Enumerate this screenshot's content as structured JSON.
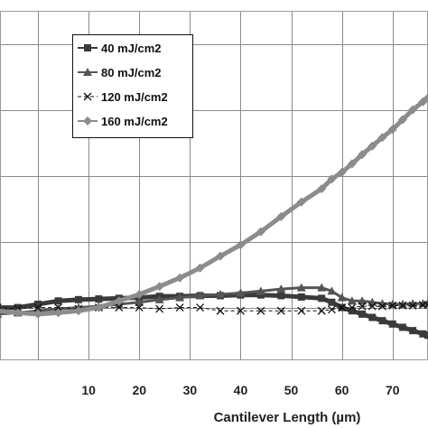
{
  "chart_data": {
    "type": "line",
    "title": "",
    "xlabel": "Cantilever Length (µm)",
    "ylabel": "",
    "xlim": [
      -7.5,
      77
    ],
    "x_ticks": [
      10,
      20,
      30,
      40,
      50,
      60,
      70
    ],
    "ylim": [
      -0.8,
      4.5
    ],
    "grid": true,
    "legend": "top-left",
    "colors": {
      "s40": "#3a3a3a",
      "s80": "#555555",
      "s120": "#111111",
      "s160": "#8c8c8c",
      "grid": "#8a8a8a",
      "frame": "#9a9a9a"
    },
    "series": [
      {
        "name": "40 mJ/cm2",
        "marker": "square",
        "x": [
          -8,
          -4,
          0,
          4,
          8,
          12,
          16,
          20,
          24,
          28,
          32,
          36,
          40,
          44,
          48,
          52,
          56,
          58,
          60,
          62,
          64,
          66,
          68,
          70,
          72,
          74,
          76,
          77
        ],
        "values": [
          0,
          0,
          0.05,
          0.1,
          0.12,
          0.13,
          0.14,
          0.15,
          0.17,
          0.17,
          0.18,
          0.18,
          0.19,
          0.19,
          0.18,
          0.16,
          0.14,
          0.08,
          0.0,
          -0.05,
          -0.1,
          -0.15,
          -0.2,
          -0.25,
          -0.3,
          -0.35,
          -0.4,
          -0.42
        ]
      },
      {
        "name": "80 mJ/cm2",
        "marker": "triangle",
        "x": [
          -8,
          -4,
          0,
          4,
          8,
          12,
          16,
          20,
          24,
          28,
          32,
          36,
          40,
          44,
          48,
          52,
          56,
          58,
          60,
          62,
          64,
          66,
          68,
          70,
          72,
          74,
          76,
          77
        ],
        "values": [
          -0.1,
          -0.08,
          -0.05,
          -0.02,
          0.0,
          0.02,
          0.05,
          0.08,
          0.12,
          0.15,
          0.18,
          0.2,
          0.22,
          0.25,
          0.28,
          0.3,
          0.3,
          0.25,
          0.15,
          0.1,
          0.1,
          0.08,
          0.06,
          0.05,
          0.05,
          0.06,
          0.06,
          0.07
        ]
      },
      {
        "name": "120 mJ/cm2",
        "marker": "x",
        "x": [
          -8,
          -4,
          0,
          4,
          8,
          12,
          16,
          20,
          24,
          28,
          32,
          36,
          40,
          44,
          48,
          52,
          56,
          58,
          60,
          62,
          64,
          66,
          68,
          70,
          72,
          74,
          76,
          77
        ],
        "values": [
          0.0,
          -0.02,
          0.0,
          0.0,
          -0.02,
          0.0,
          0.0,
          0.0,
          -0.02,
          0.0,
          0.0,
          -0.05,
          -0.05,
          -0.05,
          -0.05,
          -0.05,
          -0.05,
          -0.03,
          0.0,
          0.0,
          0.02,
          0.02,
          0.02,
          0.03,
          0.03,
          0.03,
          0.04,
          0.04
        ]
      },
      {
        "name": "160 mJ/cm2",
        "marker": "diamond",
        "x": [
          -8,
          -4,
          0,
          4,
          8,
          12,
          16,
          20,
          24,
          28,
          32,
          36,
          40,
          44,
          48,
          52,
          56,
          58,
          60,
          62,
          64,
          66,
          68,
          70,
          72,
          74,
          76,
          77
        ],
        "values": [
          -0.05,
          -0.08,
          -0.1,
          -0.08,
          -0.05,
          0.0,
          0.1,
          0.2,
          0.32,
          0.45,
          0.6,
          0.78,
          0.95,
          1.15,
          1.38,
          1.6,
          1.8,
          1.95,
          2.05,
          2.18,
          2.32,
          2.45,
          2.58,
          2.7,
          2.85,
          3.0,
          3.12,
          3.18
        ]
      }
    ]
  }
}
